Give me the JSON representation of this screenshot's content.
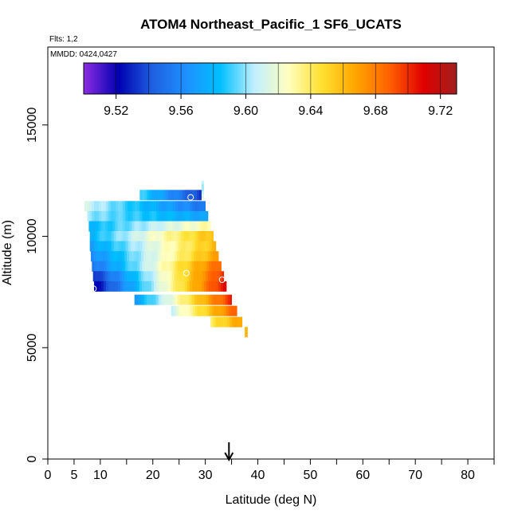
{
  "chart_data": {
    "type": "heatmap",
    "title": "ATOM4 Northeast_Pacific_1 SF6_UCATS",
    "flights_note": "Flts: 1,2",
    "date_note": "MMDD: 0424,0427",
    "xlabel": "Latitude (deg N)",
    "ylabel": "Altitude (m)",
    "xlim": [
      0,
      85
    ],
    "ylim": [
      0,
      18500
    ],
    "x_ticks": [
      0,
      5,
      10,
      20,
      30,
      40,
      50,
      60,
      70,
      80
    ],
    "x_tick_labels": [
      "0",
      "5",
      "10",
      "20",
      "30",
      "40",
      "50",
      "60",
      "70",
      "80"
    ],
    "x_minor_ticks": [
      15,
      25,
      35,
      45,
      55,
      65,
      75,
      85
    ],
    "y_ticks": [
      0,
      5000,
      10000,
      15000
    ],
    "y_tick_labels": [
      "0",
      "5000",
      "10000",
      "15000"
    ],
    "colorbar": {
      "range": [
        9.5,
        9.73
      ],
      "ticks": [
        9.52,
        9.56,
        9.6,
        9.64,
        9.68,
        9.72
      ],
      "tick_labels": [
        "9.52",
        "9.56",
        "9.60",
        "9.64",
        "9.68",
        "9.72"
      ],
      "colors": [
        "#8a2be2",
        "#0000b0",
        "#1e5fe0",
        "#1e90ff",
        "#00bfff",
        "#bfefff",
        "#ffffc0",
        "#ffe030",
        "#ffa500",
        "#ff6000",
        "#e00000",
        "#a02020"
      ]
    },
    "marker_latitude": 34.5,
    "bands": [
      {
        "lat_start": 17.5,
        "lat_end": 29.5,
        "alt": 11850,
        "v_start": 9.59,
        "v_end": 9.53
      },
      {
        "lat_start": 7.0,
        "lat_end": 30.0,
        "alt": 11350,
        "v_start": 9.61,
        "v_end": 9.55
      },
      {
        "lat_start": 7.5,
        "lat_end": 30.5,
        "alt": 10900,
        "v_start": 9.6,
        "v_end": 9.57
      },
      {
        "lat_start": 7.8,
        "lat_end": 31.0,
        "alt": 10450,
        "v_start": 9.58,
        "v_end": 9.63
      },
      {
        "lat_start": 8.0,
        "lat_end": 31.5,
        "alt": 10000,
        "v_start": 9.58,
        "v_end": 9.66
      },
      {
        "lat_start": 8.0,
        "lat_end": 32.0,
        "alt": 9550,
        "v_start": 9.57,
        "v_end": 9.66
      },
      {
        "lat_start": 8.2,
        "lat_end": 32.5,
        "alt": 9100,
        "v_start": 9.56,
        "v_end": 9.67
      },
      {
        "lat_start": 8.4,
        "lat_end": 33.0,
        "alt": 8650,
        "v_start": 9.55,
        "v_end": 9.69
      },
      {
        "lat_start": 8.6,
        "lat_end": 33.5,
        "alt": 8200,
        "v_start": 9.53,
        "v_end": 9.7
      },
      {
        "lat_start": 8.8,
        "lat_end": 34.0,
        "alt": 7750,
        "v_start": 9.52,
        "v_end": 9.71
      },
      {
        "lat_start": 16.5,
        "lat_end": 35.0,
        "alt": 7150,
        "v_start": 9.57,
        "v_end": 9.7
      },
      {
        "lat_start": 23.5,
        "lat_end": 36.0,
        "alt": 6650,
        "v_start": 9.61,
        "v_end": 9.69
      },
      {
        "lat_start": 31.0,
        "lat_end": 37.0,
        "alt": 6150,
        "v_start": 9.64,
        "v_end": 9.67
      },
      {
        "lat_start": 37.5,
        "lat_end": 38.0,
        "alt": 5700,
        "v_start": 9.66,
        "v_end": 9.66
      }
    ],
    "column": {
      "lat": 29.5,
      "alt_bottom": 11600,
      "alt_top": 12500,
      "value": 9.61
    },
    "circles": [
      {
        "lat": 27.2,
        "alt": 11750
      },
      {
        "lat": 26.4,
        "alt": 8350
      },
      {
        "lat": 33.2,
        "alt": 8050
      },
      {
        "lat": 8.7,
        "alt": 7650
      }
    ]
  }
}
